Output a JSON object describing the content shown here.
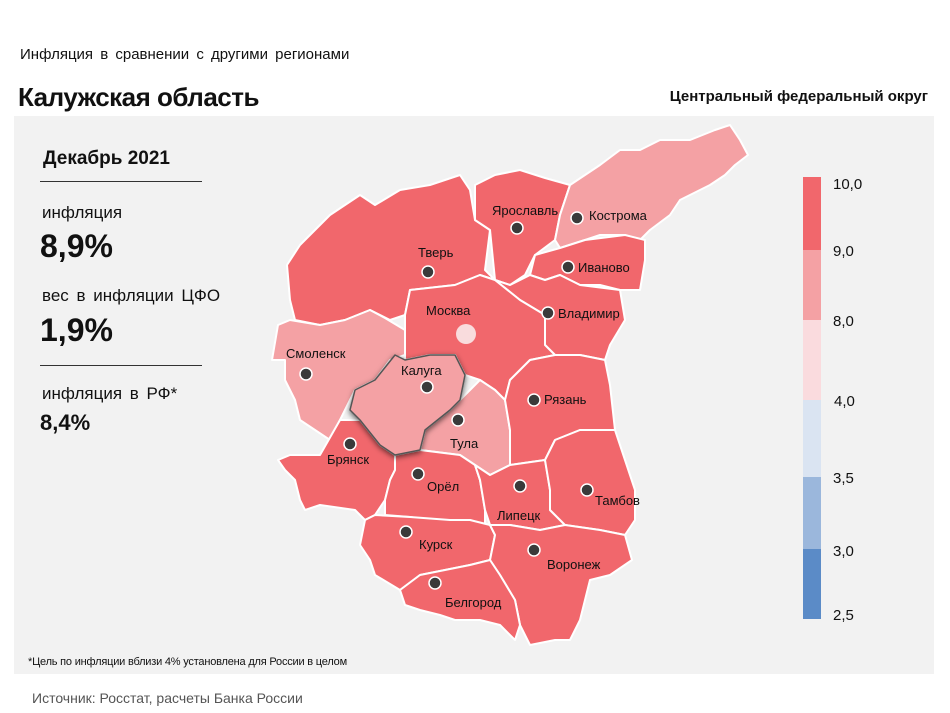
{
  "header": {
    "subtitle": "Инфляция  в сравнении  с другими  регионами",
    "title": "Калужская область",
    "district": "Центральный федеральный округ"
  },
  "info": {
    "period": "Декабрь 2021",
    "inflation_label": "инфляция",
    "inflation_value": "8,9%",
    "weight_label": "вес в инфляции  ЦФО",
    "weight_value": "1,9%",
    "rf_label": "инфляция  в РФ*",
    "rf_value": "8,4%"
  },
  "colors": {
    "band_9_10": "#f1676c",
    "band_8_9": "#f4a1a4",
    "band_4_8": "#fadbde",
    "band_35_4": "#dae4f2",
    "band_3_35": "#9bb7dc",
    "band_25_3": "#5b8bc7",
    "moscow_dot": "#f9dcdd"
  },
  "legend": {
    "ticks": [
      "10,0",
      "9,0",
      "8,0",
      "4,0",
      "3,5",
      "3,0",
      "2,5"
    ]
  },
  "map": {
    "regions": [
      {
        "city": "Тверь",
        "band": "9-10"
      },
      {
        "city": "Ярославль",
        "band": "9-10"
      },
      {
        "city": "Кострома",
        "band": "8-9"
      },
      {
        "city": "Иваново",
        "band": "9-10"
      },
      {
        "city": "Владимир",
        "band": "9-10"
      },
      {
        "city": "Москва",
        "band": "9-10"
      },
      {
        "city": "Смоленск",
        "band": "8-9"
      },
      {
        "city": "Калуга",
        "band": "8-9"
      },
      {
        "city": "Тула",
        "band": "8-9"
      },
      {
        "city": "Рязань",
        "band": "9-10"
      },
      {
        "city": "Брянск",
        "band": "9-10"
      },
      {
        "city": "Орёл",
        "band": "9-10"
      },
      {
        "city": "Липецк",
        "band": "9-10"
      },
      {
        "city": "Тамбов",
        "band": "9-10"
      },
      {
        "city": "Курск",
        "band": "9-10"
      },
      {
        "city": "Воронеж",
        "band": "9-10"
      },
      {
        "city": "Белгород",
        "band": "9-10"
      }
    ]
  },
  "footnote": "*Цель по инфляции вблизи 4% установлена для России в целом",
  "source": "Источник: Росстат, расчеты Банка России"
}
